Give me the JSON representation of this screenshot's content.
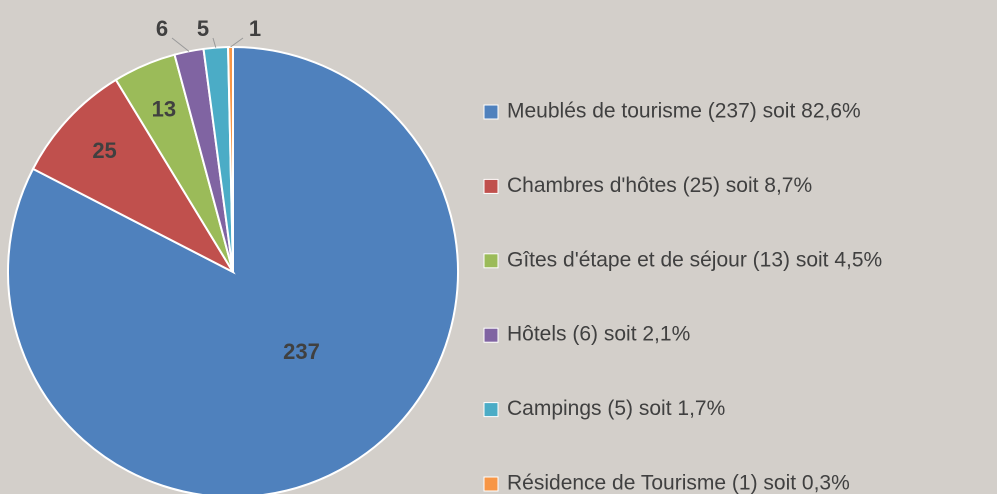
{
  "chart_data": {
    "type": "pie",
    "categories": [
      "Meublés de tourisme (237) soit 82,6%",
      "Chambres d'hôtes (25) soit 8,7%",
      "Gîtes d'étape et de séjour (13) soit 4,5%",
      "Hôtels (6) soit 2,1%",
      "Campings (5) soit 1,7%",
      "Résidence de Tourisme (1) soit 0,3%"
    ],
    "values": [
      237,
      25,
      13,
      6,
      5,
      1
    ],
    "colors": [
      "#4f81bd",
      "#c0504d",
      "#9bbb59",
      "#8064a2",
      "#4bacc6",
      "#f79646"
    ]
  }
}
